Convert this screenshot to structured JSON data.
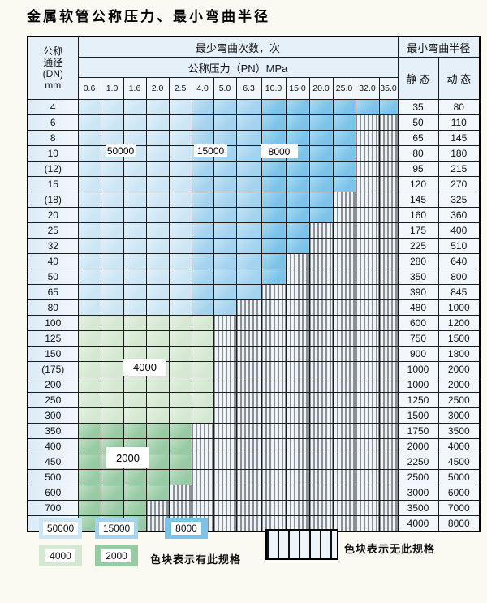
{
  "page_title": "金属软管公称压力、最小弯曲半径",
  "table": {
    "header": {
      "dn_lines": [
        "公称",
        "通径",
        "(DN)",
        "mm"
      ],
      "bend_times_label": "最少弯曲次数，次",
      "pressure_label": "公称压力（PN）MPa",
      "radius_label": "最小弯曲半径",
      "static_label": "静 态",
      "dynamic_label": "动 态",
      "pressures": [
        "0.6",
        "1.0",
        "1.6",
        "2.0",
        "2.5",
        "4.0",
        "5.0",
        "6.3",
        "10.0",
        "15.0",
        "20.0",
        "25.0",
        "32.0",
        "35.0"
      ]
    },
    "bend_count_zones_blue": {
      "0.6-2.5": "50000",
      "4.0-6.3": "15000",
      "10.0-35.0": "8000"
    },
    "rows": [
      {
        "dn": "4",
        "max_pn": "35.0",
        "group": "blue",
        "static_r": "35",
        "dynamic_r": "80"
      },
      {
        "dn": "6",
        "max_pn": "25.0",
        "group": "blue",
        "static_r": "50",
        "dynamic_r": "110"
      },
      {
        "dn": "8",
        "max_pn": "25.0",
        "group": "blue",
        "static_r": "65",
        "dynamic_r": "145"
      },
      {
        "dn": "10",
        "max_pn": "25.0",
        "group": "blue",
        "static_r": "80",
        "dynamic_r": "180"
      },
      {
        "dn": "(12)",
        "max_pn": "25.0",
        "group": "blue",
        "static_r": "95",
        "dynamic_r": "215"
      },
      {
        "dn": "15",
        "max_pn": "25.0",
        "group": "blue",
        "static_r": "120",
        "dynamic_r": "270"
      },
      {
        "dn": "(18)",
        "max_pn": "20.0",
        "group": "blue",
        "static_r": "145",
        "dynamic_r": "325"
      },
      {
        "dn": "20",
        "max_pn": "20.0",
        "group": "blue",
        "static_r": "160",
        "dynamic_r": "360"
      },
      {
        "dn": "25",
        "max_pn": "15.0",
        "group": "blue",
        "static_r": "175",
        "dynamic_r": "400"
      },
      {
        "dn": "32",
        "max_pn": "15.0",
        "group": "blue",
        "static_r": "225",
        "dynamic_r": "510"
      },
      {
        "dn": "40",
        "max_pn": "10.0",
        "group": "blue",
        "static_r": "280",
        "dynamic_r": "640"
      },
      {
        "dn": "50",
        "max_pn": "10.0",
        "group": "blue",
        "static_r": "350",
        "dynamic_r": "800"
      },
      {
        "dn": "65",
        "max_pn": "6.3",
        "group": "blue",
        "static_r": "390",
        "dynamic_r": "845"
      },
      {
        "dn": "80",
        "max_pn": "5.0",
        "group": "blue",
        "static_r": "480",
        "dynamic_r": "1000"
      },
      {
        "dn": "100",
        "max_pn": "4.0",
        "group": "4000",
        "static_r": "600",
        "dynamic_r": "1200"
      },
      {
        "dn": "125",
        "max_pn": "4.0",
        "group": "4000",
        "static_r": "750",
        "dynamic_r": "1500"
      },
      {
        "dn": "150",
        "max_pn": "4.0",
        "group": "4000",
        "static_r": "900",
        "dynamic_r": "1800"
      },
      {
        "dn": "(175)",
        "max_pn": "4.0",
        "group": "4000",
        "static_r": "1000",
        "dynamic_r": "2000"
      },
      {
        "dn": "200",
        "max_pn": "4.0",
        "group": "4000",
        "static_r": "1000",
        "dynamic_r": "2000"
      },
      {
        "dn": "250",
        "max_pn": "4.0",
        "group": "4000",
        "static_r": "1250",
        "dynamic_r": "2500"
      },
      {
        "dn": "300",
        "max_pn": "4.0",
        "group": "4000",
        "static_r": "1500",
        "dynamic_r": "3000"
      },
      {
        "dn": "350",
        "max_pn": "2.5",
        "group": "2000",
        "static_r": "1750",
        "dynamic_r": "3500"
      },
      {
        "dn": "400",
        "max_pn": "2.5",
        "group": "2000",
        "static_r": "2000",
        "dynamic_r": "4000"
      },
      {
        "dn": "450",
        "max_pn": "2.5",
        "group": "2000",
        "static_r": "2250",
        "dynamic_r": "4500"
      },
      {
        "dn": "500",
        "max_pn": "2.5",
        "group": "2000",
        "static_r": "2500",
        "dynamic_r": "5000"
      },
      {
        "dn": "600",
        "max_pn": "2.0",
        "group": "2000",
        "static_r": "3000",
        "dynamic_r": "6000"
      },
      {
        "dn": "700",
        "max_pn": "1.6",
        "group": "2000",
        "static_r": "3500",
        "dynamic_r": "7000"
      },
      {
        "dn": "800",
        "max_pn": "1.6",
        "group": "2000",
        "static_r": "4000",
        "dynamic_r": "8000"
      }
    ],
    "overlays": [
      {
        "text": "50000"
      },
      {
        "text": "15000"
      },
      {
        "text": "8000"
      },
      {
        "text": "4000"
      },
      {
        "text": "2000"
      }
    ]
  },
  "legend": {
    "swatches": [
      {
        "label": "50000",
        "color": "c50000"
      },
      {
        "label": "15000",
        "color": "c15000"
      },
      {
        "label": "8000",
        "color": "c8000"
      },
      {
        "label": "4000",
        "color": "c4000"
      },
      {
        "label": "2000",
        "color": "c2000"
      }
    ],
    "has_spec_text": "色块表示有此规格",
    "no_spec_text": "色块表示无此规格"
  },
  "colors": {
    "c50000": "#cde6f5",
    "c15000": "#a3d3ef",
    "c8000": "#7bc3e9",
    "c4000": "#d5e8d1",
    "c2000": "#97cba3",
    "stripe_bg": "#edf4fa",
    "stripe_line": "#2b2b2b",
    "grid": "#1c1c1c",
    "header_bg": "#e6f0f9",
    "pressure_cell_bg": "#eef5fb",
    "dn_cell_bg": "#dcebf7",
    "value_cell_bg": "#f1f7fc",
    "page_bg": "#fbfaf2"
  }
}
